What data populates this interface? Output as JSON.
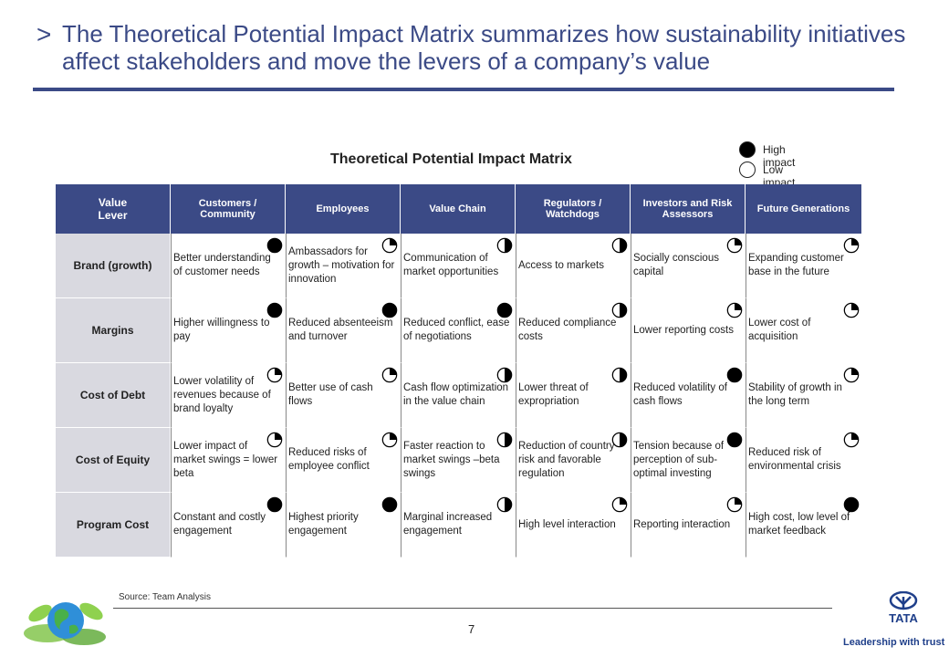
{
  "header": {
    "arrow": ">",
    "title": "The Theoretical Potential Impact Matrix summarizes how sustainability initiatives affect stakeholders and move the levers of a company’s value"
  },
  "matrix": {
    "title": "Theoretical Potential Impact Matrix",
    "legend": {
      "high": "High impact",
      "low": "Low impact"
    },
    "headers": [
      "Value\nLever",
      "Customers / Community",
      "Employees",
      "Value Chain",
      "Regulators / Watchdogs",
      "Investors and Risk Assessors",
      "Future Generations"
    ],
    "rows": [
      {
        "lever": "Brand (growth)",
        "cells": [
          {
            "text": "Better understanding of customer needs",
            "impact": 1
          },
          {
            "text": "Ambassadors for growth – motivation for innovation",
            "impact": 0.25
          },
          {
            "text": "Communication of market opportunities",
            "impact": 0.5
          },
          {
            "text": "Access to markets",
            "impact": 0.5
          },
          {
            "text": "Socially conscious capital",
            "impact": 0.25
          },
          {
            "text": "Expanding customer base in the future",
            "impact": 0.25
          }
        ]
      },
      {
        "lever": "Margins",
        "cells": [
          {
            "text": "Higher willingness to pay",
            "impact": 1
          },
          {
            "text": "Reduced absenteeism and turnover",
            "impact": 1
          },
          {
            "text": "Reduced conflict, ease of negotiations",
            "impact": 1
          },
          {
            "text": "Reduced compliance costs",
            "impact": 0.5
          },
          {
            "text": "Lower reporting costs",
            "impact": 0.25
          },
          {
            "text": "Lower cost of acquisition",
            "impact": 0.25
          }
        ]
      },
      {
        "lever": "Cost of Debt",
        "cells": [
          {
            "text": "Lower volatility of revenues because of brand loyalty",
            "impact": 0.25
          },
          {
            "text": "Better use of cash flows",
            "impact": 0.25
          },
          {
            "text": "Cash flow optimization in the value chain",
            "impact": 0.5
          },
          {
            "text": "Lower threat of expropriation",
            "impact": 0.5
          },
          {
            "text": "Reduced volatility of cash flows",
            "impact": 1
          },
          {
            "text": "Stability of growth in the long term",
            "impact": 0.25
          }
        ]
      },
      {
        "lever": "Cost of Equity",
        "cells": [
          {
            "text": "Lower impact of market swings = lower beta",
            "impact": 0.25
          },
          {
            "text": "Reduced risks of employee conflict",
            "impact": 0.25
          },
          {
            "text": "Faster reaction to market swings –beta swings",
            "impact": 0.5
          },
          {
            "text": "Reduction of country risk and favorable regulation",
            "impact": 0.5
          },
          {
            "text": "Tension because of perception of sub-optimal investing",
            "impact": 1
          },
          {
            "text": "Reduced risk of environmental crisis",
            "impact": 0.25
          }
        ]
      },
      {
        "lever": "Program Cost",
        "cells": [
          {
            "text": "Constant and costly engagement",
            "impact": 1
          },
          {
            "text": "Highest priority engagement",
            "impact": 1
          },
          {
            "text": "Marginal increased engagement",
            "impact": 0.5
          },
          {
            "text": "High level interaction",
            "impact": 0.25
          },
          {
            "text": "Reporting interaction",
            "impact": 0.25
          },
          {
            "text": "High cost, low level of market feedback",
            "impact": 1
          }
        ]
      }
    ]
  },
  "footer": {
    "source": "Source: Team Analysis",
    "page_number": "7",
    "brand_tagline": "Leadership with trust"
  },
  "colors": {
    "accent": "#3b4a86",
    "lever_bg": "#d9d9e0",
    "brand_blue": "#1f3f8a"
  },
  "icons": {
    "harvey_ball": "harvey-ball-icon",
    "globe": "globe-leaves-icon",
    "logo": "tata-logo-icon"
  }
}
